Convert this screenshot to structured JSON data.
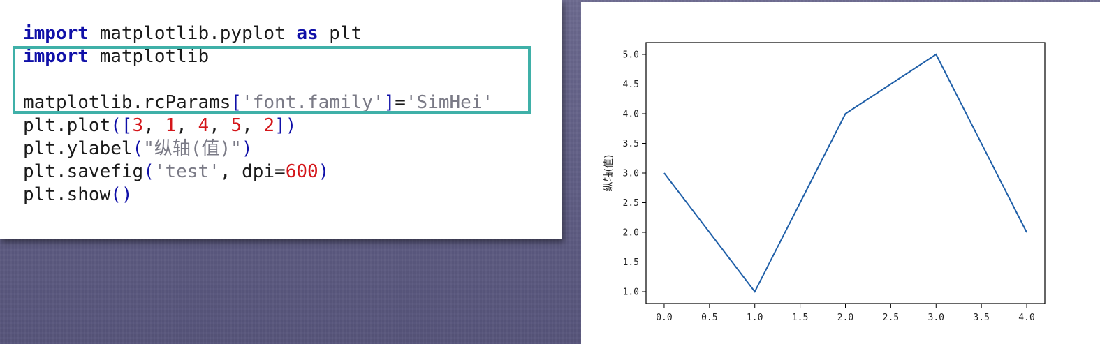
{
  "code": {
    "lines": [
      [
        {
          "t": "import",
          "c": "kw"
        },
        {
          "t": " matplotlib.pyplot "
        },
        {
          "t": "as",
          "c": "kw"
        },
        {
          "t": " plt"
        }
      ],
      [
        {
          "t": "import",
          "c": "kw"
        },
        {
          "t": " matplotlib"
        }
      ],
      [],
      [
        {
          "t": "matplotlib.rcParams"
        },
        {
          "t": "[",
          "c": "br"
        },
        {
          "t": "'font.family'",
          "c": "str"
        },
        {
          "t": "]",
          "c": "br"
        },
        {
          "t": "="
        },
        {
          "t": "'SimHei'",
          "c": "str"
        }
      ],
      [
        {
          "t": "plt.plot"
        },
        {
          "t": "([",
          "c": "br"
        },
        {
          "t": "3",
          "c": "num"
        },
        {
          "t": ", "
        },
        {
          "t": "1",
          "c": "num"
        },
        {
          "t": ", "
        },
        {
          "t": "4",
          "c": "num"
        },
        {
          "t": ", "
        },
        {
          "t": "5",
          "c": "num"
        },
        {
          "t": ", "
        },
        {
          "t": "2",
          "c": "num"
        },
        {
          "t": "])",
          "c": "br"
        }
      ],
      [
        {
          "t": "plt.ylabel"
        },
        {
          "t": "(",
          "c": "br"
        },
        {
          "t": "\"纵轴(值)\"",
          "c": "str"
        },
        {
          "t": ")",
          "c": "br"
        }
      ],
      [
        {
          "t": "plt.savefig"
        },
        {
          "t": "(",
          "c": "br"
        },
        {
          "t": "'test'",
          "c": "str"
        },
        {
          "t": ", dpi="
        },
        {
          "t": "600",
          "c": "num"
        },
        {
          "t": ")",
          "c": "br"
        }
      ],
      [
        {
          "t": "plt.show"
        },
        {
          "t": "()",
          "c": "br"
        }
      ]
    ],
    "colors": {
      "keyword": "#1010a8",
      "string": "#7a7a86",
      "number": "#d4161a",
      "highlight_box": "#3fb0a8"
    }
  },
  "chart_data": {
    "type": "line",
    "x": [
      0,
      1,
      2,
      3,
      4
    ],
    "y": [
      3,
      1,
      4,
      5,
      2
    ],
    "ylabel": "纵轴(值)",
    "xlim": [
      -0.2,
      4.2
    ],
    "ylim": [
      0.8,
      5.2
    ],
    "xticks": [
      "0.0",
      "0.5",
      "1.0",
      "1.5",
      "2.0",
      "2.5",
      "3.0",
      "3.5",
      "4.0"
    ],
    "yticks": [
      "1.0",
      "1.5",
      "2.0",
      "2.5",
      "3.0",
      "3.5",
      "4.0",
      "4.5",
      "5.0"
    ],
    "line_color": "#1f5fa8",
    "grid": false
  }
}
